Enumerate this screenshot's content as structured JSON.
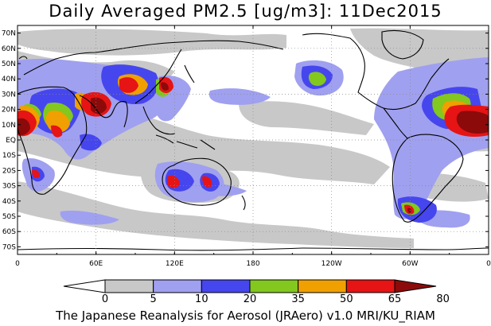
{
  "title": "Daily Averaged PM2.5 [ug/m3]: 11Dec2015",
  "footer": "The Japanese Reanalysis for Aerosol (JRAero) v1.0 MRI/KU_RIAM",
  "map": {
    "lat_labels": [
      "70N",
      "60N",
      "50N",
      "40N",
      "30N",
      "20N",
      "10N",
      "EQ",
      "10S",
      "20S",
      "30S",
      "40S",
      "50S",
      "60S",
      "70S"
    ],
    "lon_labels": [
      "0",
      "60E",
      "120E",
      "180",
      "120W",
      "60W",
      "0"
    ]
  },
  "colorbar": {
    "levels": [
      "0",
      "5",
      "10",
      "20",
      "35",
      "50",
      "65",
      "80"
    ],
    "colors": [
      "#ffffff",
      "#c8c8c8",
      "#a0a0f0",
      "#4646ee",
      "#82c81e",
      "#f0a000",
      "#e61414",
      "#8c0a0a"
    ]
  }
}
